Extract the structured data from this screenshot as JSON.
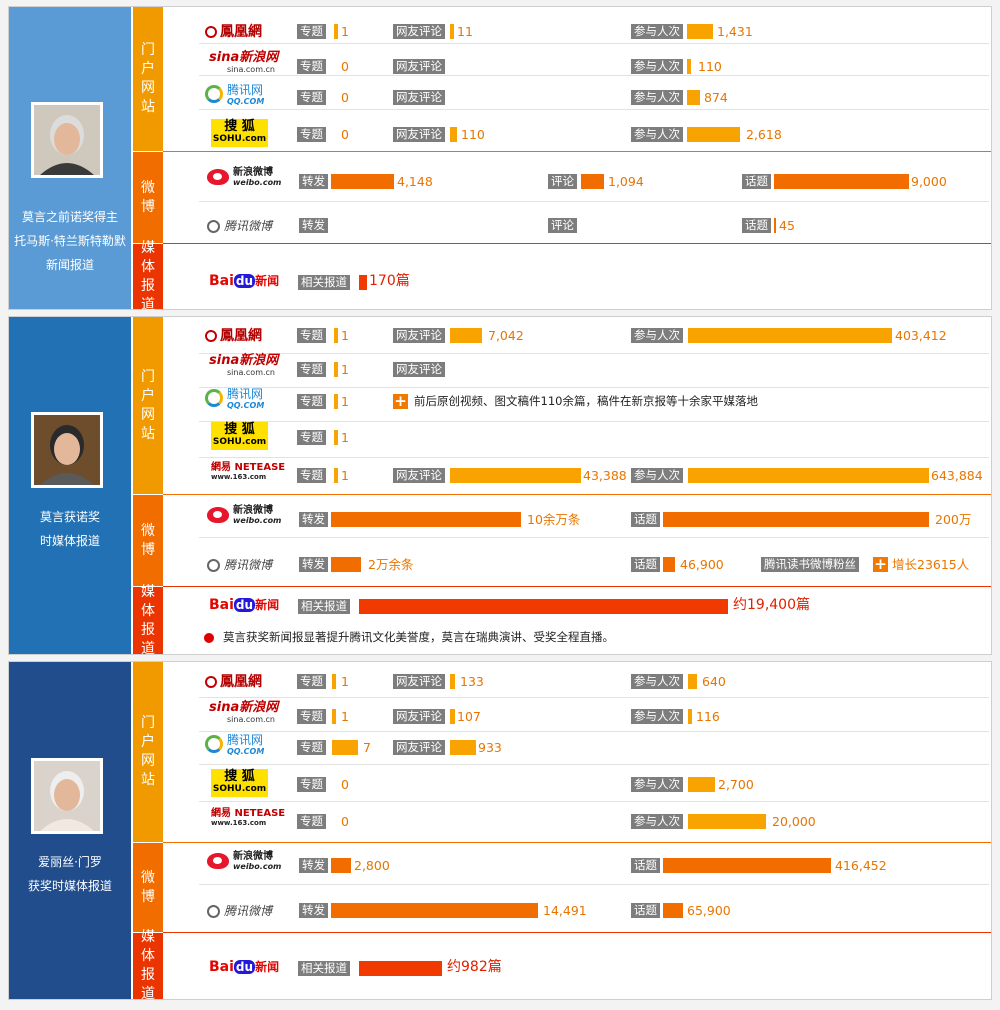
{
  "colors": {
    "portal": "#f19a00",
    "weibo": "#f26d00",
    "media": "#ea3500",
    "bar_orange": "#f8a300",
    "bar_weibo": "#f26d00",
    "bar_red": "#f03a00",
    "label_gray": "#7d7d7d",
    "value_orange": "#e87500",
    "panel1_person": "#5b9bd5",
    "panel2_person": "#2271b5",
    "panel3_person": "#214d8c"
  },
  "sections": {
    "portal": "门户网站",
    "weibo": "微博",
    "media": "媒体报道"
  },
  "logos": {
    "ifeng": "鳳凰網",
    "sina": "sina新浪网",
    "sina_sub": "sina.com.cn",
    "qq": "腾讯网",
    "qq_sub": "QQ.COM",
    "sohu": "搜 狐",
    "sohu_sub": "SOHU.com",
    "netease": "網易 NETEASE",
    "netease_sub": "www.163.com",
    "sina_weibo": "新浪微博",
    "sina_weibo_sub": "weibo.com",
    "tencent_weibo": "腾讯微博",
    "baidu_bai": "Bai",
    "baidu_du": "du",
    "baidu_news": "新闻"
  },
  "labels": {
    "topic": "专题",
    "comments": "网友评论",
    "participants": "参与人次",
    "reposts": "转发",
    "review": "评论",
    "hashtag": "话题",
    "related": "相关报道",
    "qq_reading_fans": "腾讯读书微博粉丝"
  },
  "panels": [
    {
      "caption_lines": [
        "莫言之前诺奖得主",
        "托马斯·特兰斯特勒默",
        "新闻报道"
      ],
      "photo": "tranströmer-photo"
    },
    {
      "caption_lines": [
        "莫言获诺奖",
        "时媒体报道"
      ],
      "photo": "mo-yan-photo"
    },
    {
      "caption_lines": [
        "爱丽丝·门罗",
        "获奖时媒体报道"
      ],
      "photo": "alice-munro-photo"
    }
  ],
  "chart_data": [
    {
      "type": "bar",
      "title": "莫言之前诺奖得主 托马斯·特兰斯特勒默 新闻报道",
      "portal": [
        {
          "site": "鳳凰網",
          "专题": 1,
          "网友评论": 11,
          "参与人次": 1431
        },
        {
          "site": "新浪网",
          "专题": 0,
          "网友评论": null,
          "参与人次": 110
        },
        {
          "site": "腾讯网",
          "专题": 0,
          "网友评论": null,
          "参与人次": 874
        },
        {
          "site": "搜狐",
          "专题": 0,
          "网友评论": 110,
          "参与人次": 2618
        }
      ],
      "weibo": [
        {
          "site": "新浪微博",
          "转发": 4148,
          "评论": 1094,
          "话题": 9000
        },
        {
          "site": "腾讯微博",
          "转发": null,
          "评论": null,
          "话题": 45
        }
      ],
      "media": {
        "site": "百度新闻",
        "相关报道": 170
      },
      "text_values": {
        "ifeng_topic": "1",
        "ifeng_comments": "11",
        "ifeng_participants": "1,431",
        "sina_topic": "0",
        "sina_participants": "110",
        "qq_topic": "0",
        "qq_participants": "874",
        "sohu_topic": "0",
        "sohu_comments": "110",
        "sohu_participants": "2,618",
        "sw_reposts": "4,148",
        "sw_review": "1,094",
        "sw_hashtag": "9,000",
        "tw_hashtag": "45",
        "baidu_related": "170篇"
      }
    },
    {
      "type": "bar",
      "title": "莫言获诺奖时媒体报道",
      "portal": [
        {
          "site": "鳳凰網",
          "专题": 1,
          "网友评论": 7042,
          "参与人次": 403412
        },
        {
          "site": "新浪网",
          "专题": 1,
          "网友评论": null,
          "参与人次": null
        },
        {
          "site": "腾讯网",
          "专题": 1,
          "网友评论": null,
          "参与人次": null
        },
        {
          "site": "搜狐",
          "专题": 1,
          "网友评论": null,
          "参与人次": null
        },
        {
          "site": "网易",
          "专题": 1,
          "网友评论": 43388,
          "参与人次": 643884
        }
      ],
      "weibo": [
        {
          "site": "新浪微博",
          "转发": 100000,
          "话题": 2000000
        },
        {
          "site": "腾讯微博",
          "转发": 20000,
          "话题": 46900,
          "腾讯读书微博粉丝增长": 23615
        }
      ],
      "media": {
        "site": "百度新闻",
        "相关报道": 19400
      },
      "text_values": {
        "ifeng_topic": "1",
        "ifeng_comments": "7,042",
        "ifeng_participants": "403,412",
        "sina_topic": "1",
        "qq_topic": "1",
        "qq_note": "前后原创视频、图文稿件110余篇，稿件在新京报等十余家平媒落地",
        "sohu_topic": "1",
        "netease_topic": "1",
        "netease_comments": "43,388",
        "netease_participants": "643,884",
        "sw_reposts": "10余万条",
        "sw_hashtag": "200万",
        "tw_reposts": "2万余条",
        "tw_hashtag": "46,900",
        "tw_fans_growth": "增长23615人",
        "baidu_related": "约19,400篇",
        "footnote": "莫言获奖新闻报显著提升腾讯文化美誉度，莫言在瑞典演讲、受奖全程直播。"
      }
    },
    {
      "type": "bar",
      "title": "爱丽丝·门罗获奖时媒体报道",
      "portal": [
        {
          "site": "鳳凰網",
          "专题": 1,
          "网友评论": 133,
          "参与人次": 640
        },
        {
          "site": "新浪网",
          "专题": 1,
          "网友评论": 107,
          "参与人次": 116
        },
        {
          "site": "腾讯网",
          "专题": 7,
          "网友评论": 933,
          "参与人次": null
        },
        {
          "site": "搜狐",
          "专题": 0,
          "网友评论": null,
          "参与人次": 2700
        },
        {
          "site": "网易",
          "专题": 0,
          "网友评论": null,
          "参与人次": 20000
        }
      ],
      "weibo": [
        {
          "site": "新浪微博",
          "转发": 2800,
          "话题": 416452
        },
        {
          "site": "腾讯微博",
          "转发": 14491,
          "话题": 65900
        }
      ],
      "media": {
        "site": "百度新闻",
        "相关报道": 982
      },
      "text_values": {
        "ifeng_topic": "1",
        "ifeng_comments": "133",
        "ifeng_participants": "640",
        "sina_topic": "1",
        "sina_comments": "107",
        "sina_participants": "116",
        "qq_topic": "7",
        "qq_comments": "933",
        "sohu_topic": "0",
        "sohu_participants": "2,700",
        "netease_topic": "0",
        "netease_participants": "20,000",
        "sw_reposts": "2,800",
        "sw_hashtag": "416,452",
        "tw_reposts": "14,491",
        "tw_hashtag": "65,900",
        "baidu_related": "约982篇"
      }
    }
  ]
}
